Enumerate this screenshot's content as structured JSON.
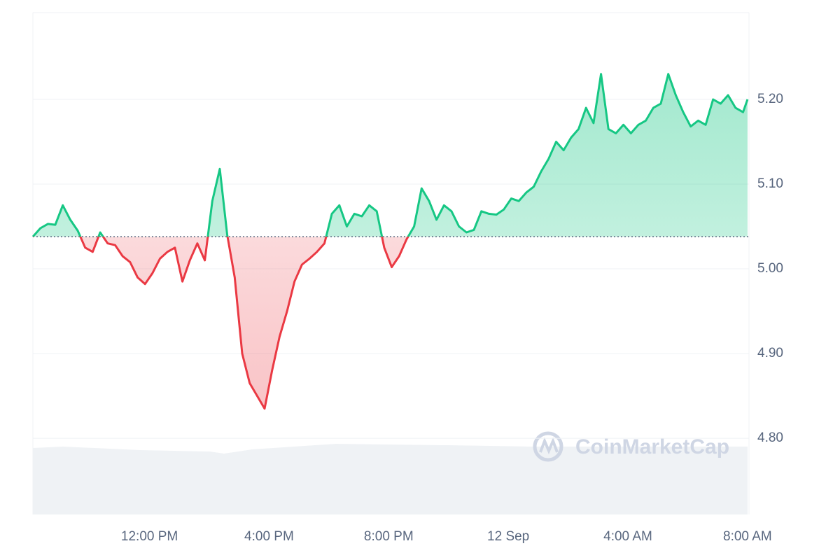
{
  "chart_data": {
    "type": "line",
    "watermark": "CoinMarketCap",
    "x": [
      8.1,
      8.35,
      8.6,
      8.85,
      9.1,
      9.35,
      9.6,
      9.85,
      10.1,
      10.35,
      10.6,
      10.85,
      11.1,
      11.35,
      11.6,
      11.85,
      12.1,
      12.35,
      12.6,
      12.85,
      13.1,
      13.35,
      13.6,
      13.85,
      14.1,
      14.35,
      14.6,
      14.85,
      15.1,
      15.35,
      15.6,
      15.85,
      16.1,
      16.35,
      16.6,
      16.85,
      17.1,
      17.35,
      17.6,
      17.85,
      18.1,
      18.35,
      18.6,
      18.85,
      19.1,
      19.35,
      19.6,
      19.85,
      20.1,
      20.35,
      20.6,
      20.85,
      21.1,
      21.35,
      21.6,
      21.85,
      22.1,
      22.35,
      22.6,
      22.85,
      23.1,
      23.35,
      23.6,
      23.85,
      24.1,
      24.35,
      24.6,
      24.85,
      25.1,
      25.35,
      25.6,
      25.85,
      26.1,
      26.35,
      26.6,
      26.85,
      27.1,
      27.35,
      27.6,
      27.85,
      28.1,
      28.35,
      28.6,
      28.85,
      29.1,
      29.35,
      29.6,
      29.85,
      30.1,
      30.35,
      30.6,
      30.85,
      31.1,
      31.35,
      31.6,
      31.85,
      32.0
    ],
    "series": [
      {
        "color": "#16c784",
        "below_color": "#ea3943",
        "values": [
          5.038,
          5.048,
          5.053,
          5.052,
          5.075,
          5.058,
          5.045,
          5.025,
          5.02,
          5.043,
          5.03,
          5.028,
          5.015,
          5.008,
          4.99,
          4.982,
          4.995,
          5.012,
          5.02,
          5.025,
          4.985,
          5.01,
          5.03,
          5.01,
          5.08,
          5.118,
          5.04,
          4.99,
          4.9,
          4.865,
          4.85,
          4.835,
          4.88,
          4.92,
          4.95,
          4.985,
          5.005,
          5.012,
          5.02,
          5.03,
          5.065,
          5.075,
          5.05,
          5.065,
          5.062,
          5.075,
          5.068,
          5.025,
          5.002,
          5.015,
          5.035,
          5.05,
          5.095,
          5.08,
          5.058,
          5.075,
          5.068,
          5.05,
          5.043,
          5.046,
          5.068,
          5.065,
          5.064,
          5.07,
          5.083,
          5.08,
          5.09,
          5.097,
          5.115,
          5.13,
          5.15,
          5.14,
          5.155,
          5.165,
          5.19,
          5.172,
          5.23,
          5.165,
          5.16,
          5.17,
          5.16,
          5.17,
          5.175,
          5.19,
          5.195,
          5.23,
          5.205,
          5.185,
          5.168,
          5.175,
          5.17,
          5.2,
          5.195,
          5.205,
          5.19,
          5.185,
          5.2
        ]
      }
    ],
    "baseline": 5.038,
    "xlim": [
      8.1,
      32.05
    ],
    "xticks": [
      {
        "value": 12,
        "label": "12:00 PM"
      },
      {
        "value": 16,
        "label": "4:00 PM"
      },
      {
        "value": 20,
        "label": "8:00 PM"
      },
      {
        "value": 24,
        "label": "12 Sep"
      },
      {
        "value": 28,
        "label": "4:00 AM"
      },
      {
        "value": 32,
        "label": "8:00 AM"
      }
    ],
    "ylim": [
      4.71,
      5.3
    ],
    "yticks": [
      {
        "value": 4.8,
        "label": "4.80"
      },
      {
        "value": 4.9,
        "label": "4.90"
      },
      {
        "value": 5.0,
        "label": "5.00"
      },
      {
        "value": 5.1,
        "label": "5.10"
      },
      {
        "value": 5.2,
        "label": "5.20"
      }
    ],
    "grid": true
  }
}
